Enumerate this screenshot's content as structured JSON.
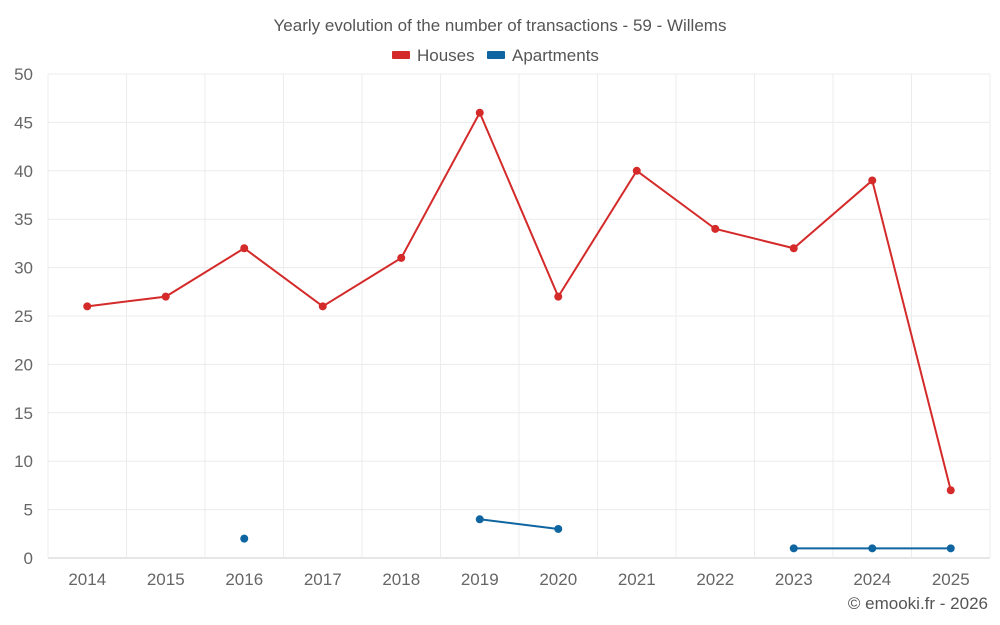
{
  "chart_data": {
    "type": "line",
    "title": "Yearly evolution of the number of transactions - 59 - Willems",
    "categories": [
      "2014",
      "2015",
      "2016",
      "2017",
      "2018",
      "2019",
      "2020",
      "2021",
      "2022",
      "2023",
      "2024",
      "2025"
    ],
    "ylim": [
      0,
      50
    ],
    "yticks": [
      0,
      5,
      10,
      15,
      20,
      25,
      30,
      35,
      40,
      45,
      50
    ],
    "grid": true,
    "legend_position": "top-center",
    "series": [
      {
        "name": "Houses",
        "color": "#d42a2a",
        "values": [
          26,
          27,
          32,
          26,
          31,
          46,
          27,
          40,
          34,
          32,
          39,
          7
        ]
      },
      {
        "name": "Apartments",
        "color": "#0f65a0",
        "values": [
          null,
          null,
          2,
          null,
          null,
          4,
          3,
          null,
          null,
          1,
          1,
          1
        ]
      }
    ]
  },
  "credit": "© emooki.fr - 2026"
}
